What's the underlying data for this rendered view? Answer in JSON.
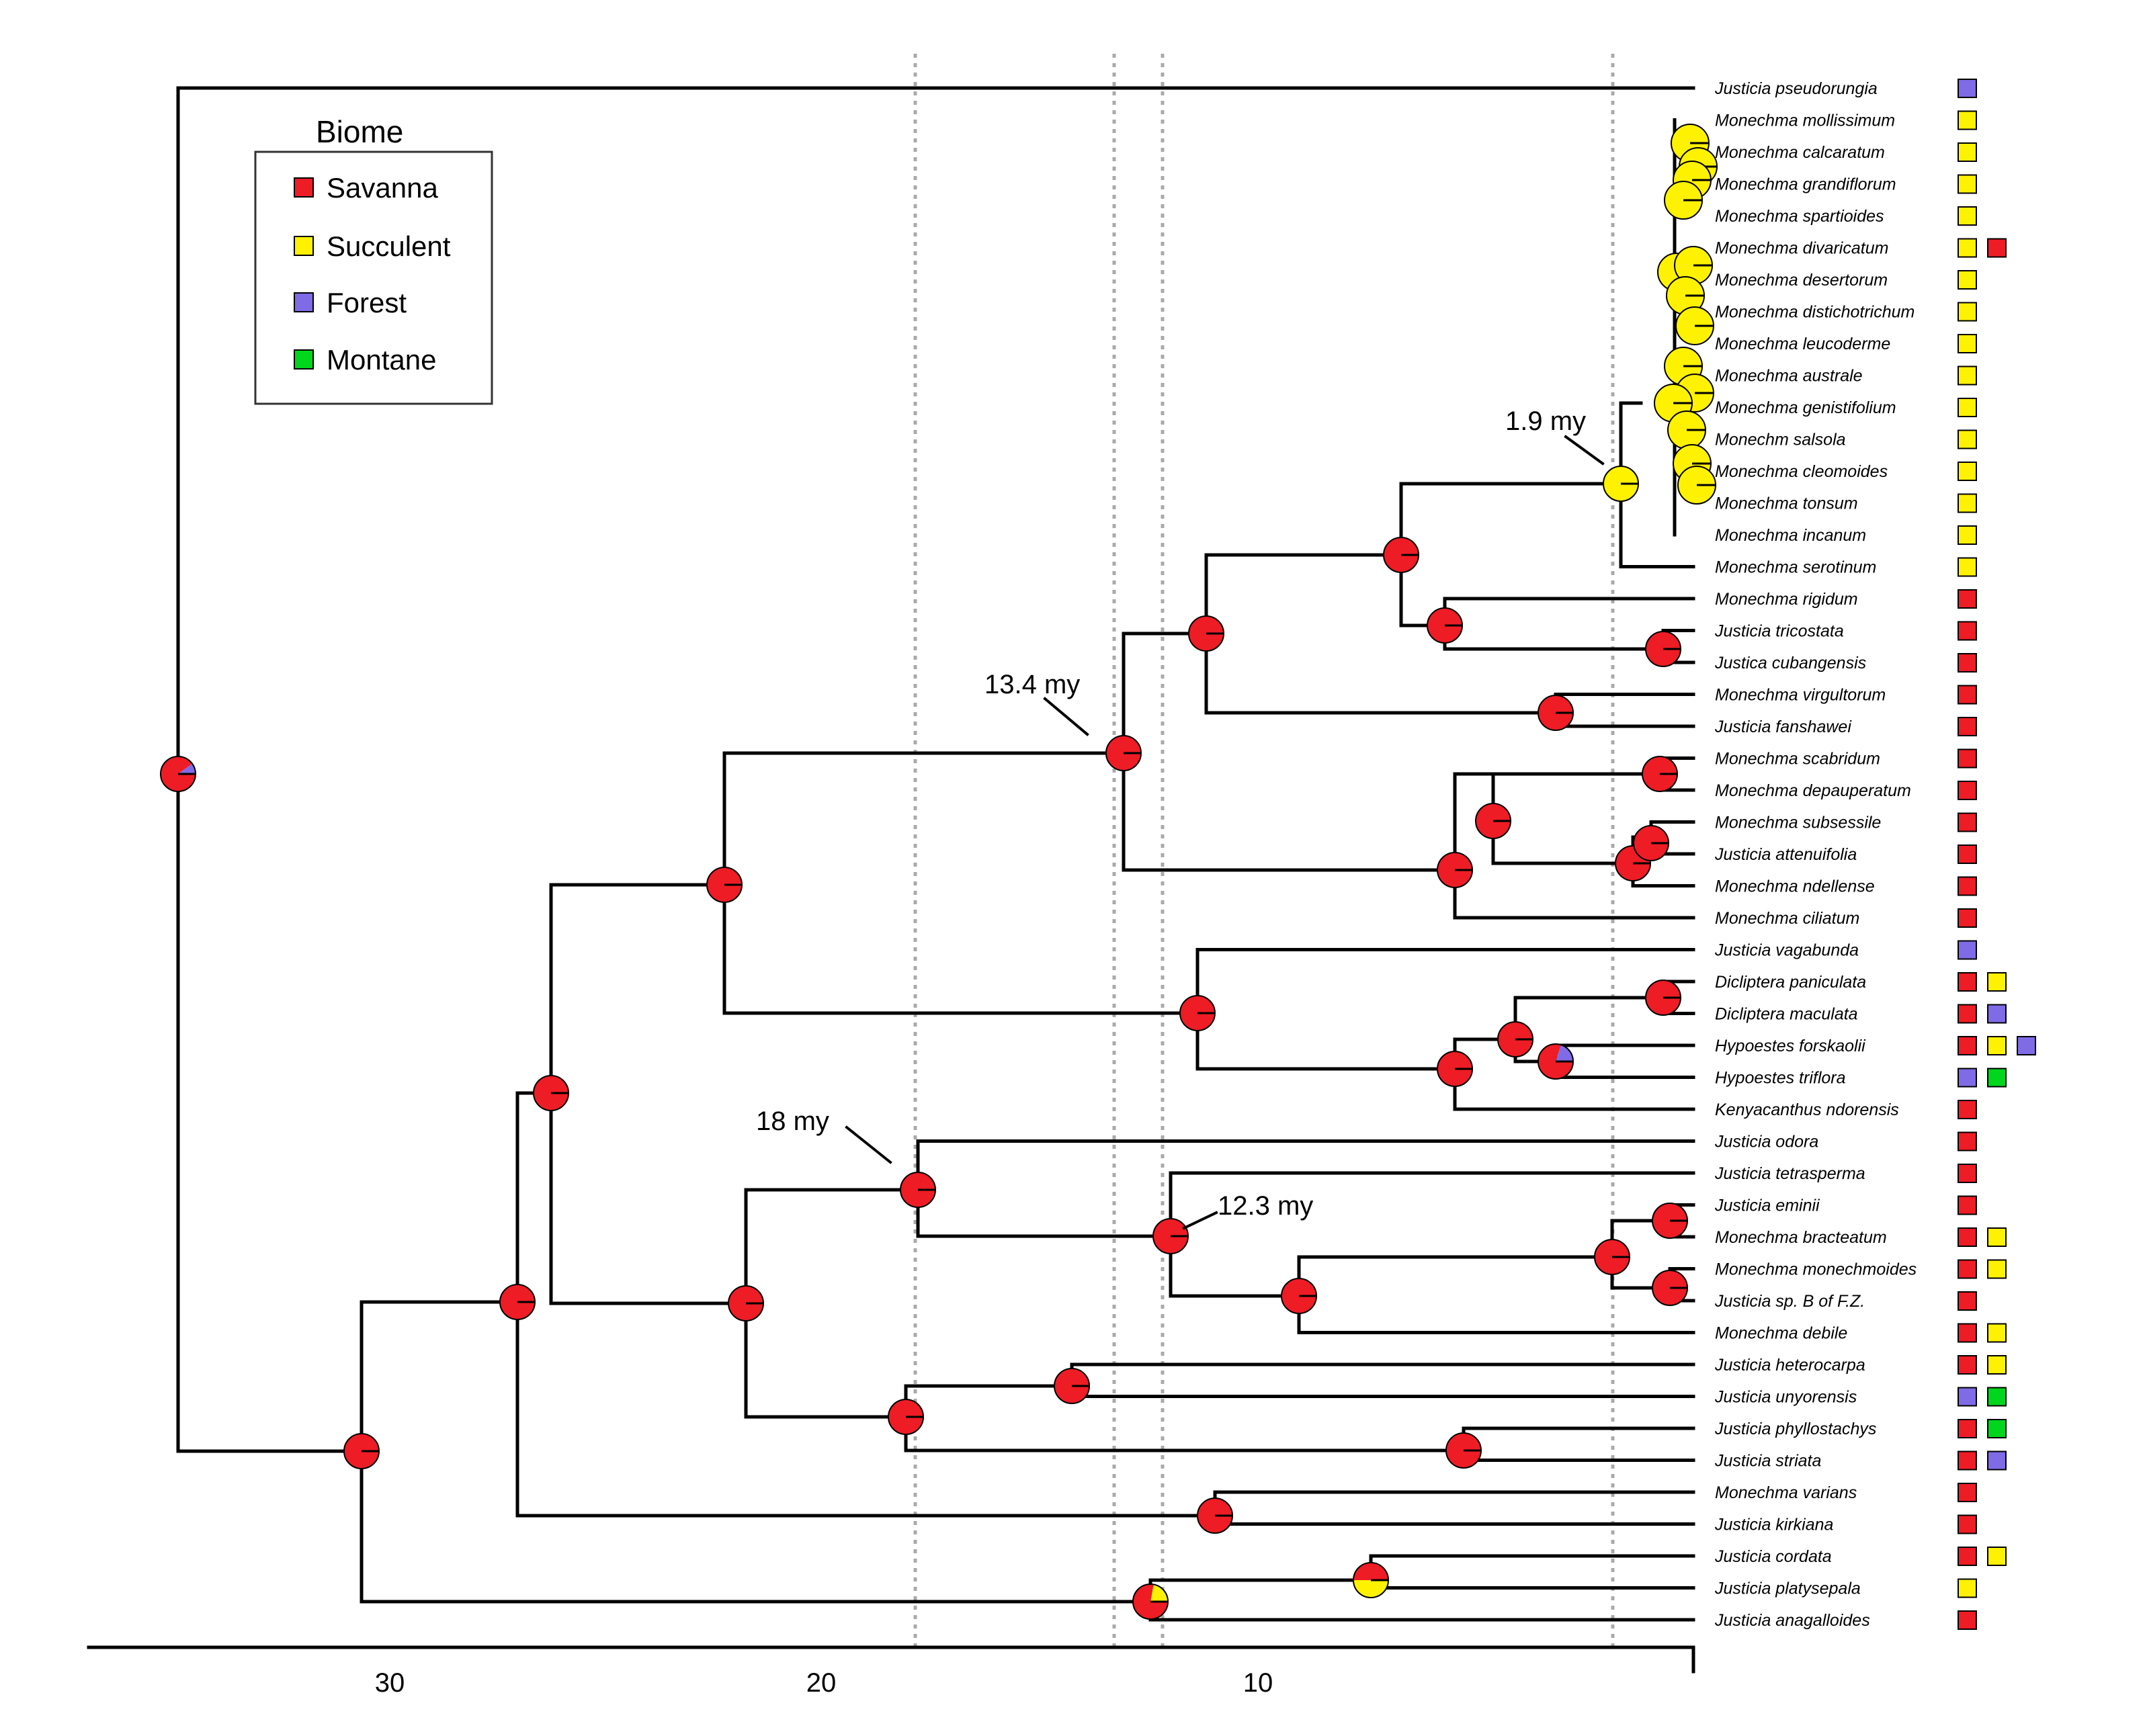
{
  "legend": {
    "title": "Biome",
    "items": [
      {
        "key": "S",
        "label": "Savanna",
        "color": "#ee1c24"
      },
      {
        "key": "U",
        "label": "Succulent",
        "color": "#fff200"
      },
      {
        "key": "F",
        "label": "Forest",
        "color": "#7f6be6"
      },
      {
        "key": "M",
        "label": "Montane",
        "color": "#00d61c"
      }
    ]
  },
  "axis": {
    "ticks": [
      "30",
      "20",
      "10"
    ]
  },
  "annotations": [
    {
      "id": "a19",
      "text": "1.9 my"
    },
    {
      "id": "a134",
      "text": "13.4 my"
    },
    {
      "id": "a18",
      "text": "18 my"
    },
    {
      "id": "a123",
      "text": "12.3 my"
    }
  ],
  "taxa": [
    {
      "name": "Justicia pseudorungia",
      "biomes": [
        "F"
      ]
    },
    {
      "name": "Monechma mollissimum",
      "biomes": [
        "U"
      ]
    },
    {
      "name": "Monechma calcaratum",
      "biomes": [
        "U"
      ]
    },
    {
      "name": "Monechma grandiflorum",
      "biomes": [
        "U"
      ]
    },
    {
      "name": "Monechma spartioides",
      "biomes": [
        "U"
      ]
    },
    {
      "name": "Monechma divaricatum",
      "biomes": [
        "U",
        "S"
      ]
    },
    {
      "name": "Monechma desertorum",
      "biomes": [
        "U"
      ]
    },
    {
      "name": "Monechma distichotrichum",
      "biomes": [
        "U"
      ]
    },
    {
      "name": "Monechma leucoderme",
      "biomes": [
        "U"
      ]
    },
    {
      "name": "Monechma australe",
      "biomes": [
        "U"
      ]
    },
    {
      "name": "Monechma genistifolium",
      "biomes": [
        "U"
      ]
    },
    {
      "name": "Monechm salsola",
      "biomes": [
        "U"
      ]
    },
    {
      "name": "Monechma cleomoides",
      "biomes": [
        "U"
      ]
    },
    {
      "name": "Monechma tonsum",
      "biomes": [
        "U"
      ]
    },
    {
      "name": "Monechma incanum",
      "biomes": [
        "U"
      ]
    },
    {
      "name": "Monechma serotinum",
      "biomes": [
        "U"
      ]
    },
    {
      "name": "Monechma rigidum",
      "biomes": [
        "S"
      ]
    },
    {
      "name": "Justicia tricostata",
      "biomes": [
        "S"
      ]
    },
    {
      "name": "Justica cubangensis",
      "biomes": [
        "S"
      ]
    },
    {
      "name": "Monechma virgultorum",
      "biomes": [
        "S"
      ]
    },
    {
      "name": "Justicia fanshawei",
      "biomes": [
        "S"
      ]
    },
    {
      "name": "Monechma scabridum",
      "biomes": [
        "S"
      ]
    },
    {
      "name": "Monechma depauperatum",
      "biomes": [
        "S"
      ]
    },
    {
      "name": "Monechma subsessile",
      "biomes": [
        "S"
      ]
    },
    {
      "name": "Justicia attenuifolia",
      "biomes": [
        "S"
      ]
    },
    {
      "name": "Monechma ndellense",
      "biomes": [
        "S"
      ]
    },
    {
      "name": "Monechma ciliatum",
      "biomes": [
        "S"
      ]
    },
    {
      "name": "Justicia vagabunda",
      "biomes": [
        "F"
      ]
    },
    {
      "name": "Dicliptera paniculata",
      "biomes": [
        "S",
        "U"
      ]
    },
    {
      "name": "Dicliptera maculata",
      "biomes": [
        "S",
        "F"
      ]
    },
    {
      "name": "Hypoestes forskaolii",
      "biomes": [
        "S",
        "U",
        "F"
      ]
    },
    {
      "name": "Hypoestes triflora",
      "biomes": [
        "F",
        "M"
      ]
    },
    {
      "name": "Kenyacanthus ndorensis",
      "biomes": [
        "S"
      ]
    },
    {
      "name": "Justicia odora",
      "biomes": [
        "S"
      ]
    },
    {
      "name": "Justicia tetrasperma",
      "biomes": [
        "S"
      ]
    },
    {
      "name": "Justicia eminii",
      "biomes": [
        "S"
      ]
    },
    {
      "name": "Monechma bracteatum",
      "biomes": [
        "S",
        "U"
      ]
    },
    {
      "name": "Monechma monechmoides",
      "biomes": [
        "S",
        "U"
      ]
    },
    {
      "name": "Justicia sp. B of F.Z.",
      "biomes": [
        "S"
      ]
    },
    {
      "name": "Monechma debile",
      "biomes": [
        "S",
        "U"
      ]
    },
    {
      "name": "Justicia heterocarpa",
      "biomes": [
        "S",
        "U"
      ]
    },
    {
      "name": "Justicia unyorensis",
      "biomes": [
        "F",
        "M"
      ]
    },
    {
      "name": "Justicia phyllostachys",
      "biomes": [
        "S",
        "M"
      ]
    },
    {
      "name": "Justicia striata",
      "biomes": [
        "S",
        "F"
      ]
    },
    {
      "name": "Monechma varians",
      "biomes": [
        "S"
      ]
    },
    {
      "name": "Justicia kirkiana",
      "biomes": [
        "S"
      ]
    },
    {
      "name": "Justicia cordata",
      "biomes": [
        "S",
        "U"
      ]
    },
    {
      "name": "Justicia platysepala",
      "biomes": [
        "U"
      ]
    },
    {
      "name": "Justicia anagalloides",
      "biomes": [
        "S"
      ]
    }
  ]
}
